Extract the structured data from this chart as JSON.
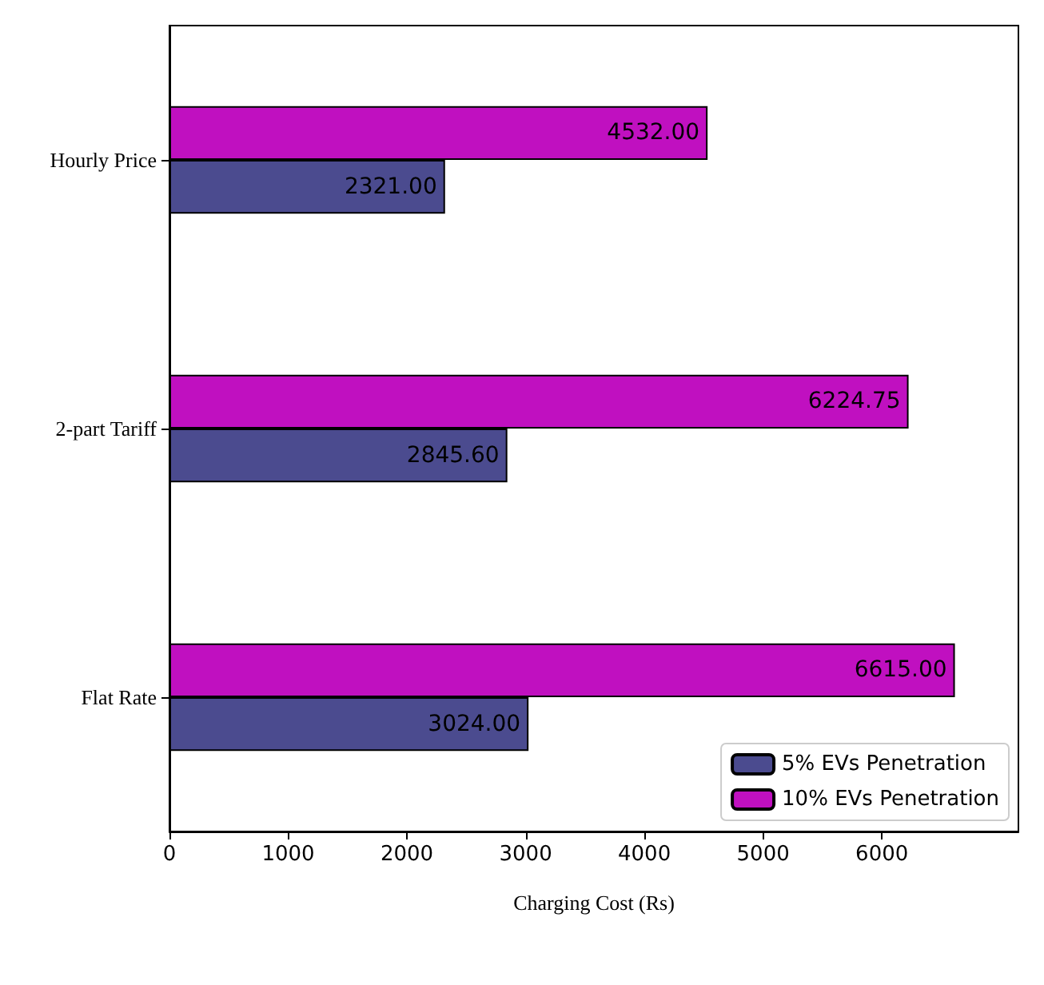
{
  "chart_data": {
    "type": "bar",
    "orientation": "horizontal",
    "xlabel": "Charging Cost (Rs)",
    "categories": [
      "Hourly Price",
      "2-part Tariff",
      "Flat Rate"
    ],
    "series": [
      {
        "name": "5% EVs Penetration",
        "color": "#4b4b8f",
        "values": [
          2321,
          2845.6,
          3024
        ],
        "value_labels": [
          "2321.00",
          "2845.60",
          "3024.00"
        ]
      },
      {
        "name": "10% EVs Penetration",
        "color": "#c010c0",
        "values": [
          4532,
          6224.75,
          6615
        ],
        "value_labels": [
          "4532.00",
          "6224.75",
          "6615.00"
        ]
      }
    ],
    "xlim": [
      0,
      7150
    ],
    "xticks": [
      0,
      1000,
      2000,
      3000,
      4000,
      5000,
      6000
    ],
    "grid": false,
    "legend": "bottom right"
  }
}
